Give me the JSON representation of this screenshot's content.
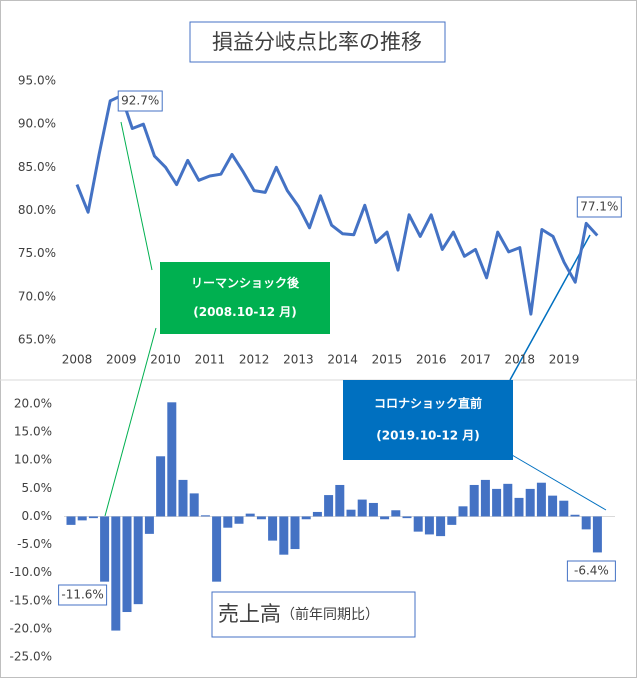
{
  "chart_data": [
    {
      "type": "line",
      "title": "損益分岐点比率の推移",
      "color": "#4472c4",
      "categories": [
        "2008",
        null,
        null,
        null,
        "2009",
        null,
        null,
        null,
        "2010",
        null,
        null,
        null,
        "2011",
        null,
        null,
        null,
        "2012",
        null,
        null,
        null,
        "2013",
        null,
        null,
        null,
        "2014",
        null,
        null,
        null,
        "2015",
        null,
        null,
        null,
        "2016",
        null,
        null,
        null,
        "2017",
        null,
        null,
        null,
        "2018",
        null,
        null,
        null,
        "2019",
        null,
        null,
        null
      ],
      "values": [
        83.0,
        79.8,
        86.5,
        92.7,
        93.3,
        89.5,
        90.0,
        86.3,
        85.0,
        83.0,
        85.8,
        83.5,
        84.0,
        84.2,
        86.5,
        84.5,
        82.3,
        82.1,
        85.0,
        82.3,
        80.5,
        78.0,
        81.7,
        78.3,
        77.3,
        77.2,
        80.6,
        76.3,
        77.5,
        73.1,
        79.5,
        77.0,
        79.5,
        75.5,
        77.5,
        74.7,
        75.5,
        72.2,
        77.5,
        75.2,
        75.7,
        68.0,
        77.8,
        77.0,
        74.0,
        71.7,
        78.5,
        77.1
      ],
      "value_labels": [
        null,
        null,
        null,
        "92.7%",
        null,
        null,
        null,
        null,
        null,
        null,
        null,
        null,
        null,
        null,
        null,
        null,
        null,
        null,
        null,
        null,
        null,
        null,
        null,
        null,
        null,
        null,
        null,
        null,
        null,
        null,
        null,
        null,
        null,
        null,
        null,
        null,
        null,
        null,
        null,
        null,
        null,
        null,
        null,
        null,
        null,
        null,
        null,
        "77.1%"
      ],
      "ylim": [
        65,
        95
      ],
      "yticks": [
        {
          "value": 65,
          "label": "65.0%"
        },
        {
          "value": 70,
          "label": "70.0%"
        },
        {
          "value": 75,
          "label": "75.0%"
        },
        {
          "value": 80,
          "label": "80.0%"
        },
        {
          "value": 85,
          "label": "85.0%"
        },
        {
          "value": 90,
          "label": "90.0%"
        },
        {
          "value": 95,
          "label": "95.0%"
        }
      ],
      "grid": false,
      "annotations": [
        {
          "text": "リーマンショック後",
          "sub": "(2008.10-12 月)",
          "color": "#00b050"
        },
        {
          "text": "コロナショック直前",
          "sub": "(2019.10-12 月)",
          "color": "#0070c0"
        }
      ]
    },
    {
      "type": "bar",
      "title": "売上高",
      "subtitle": "（前年同期比）",
      "color": "#4472c4",
      "values": [
        -1.5,
        -0.7,
        -0.3,
        -11.6,
        -20.3,
        -17.0,
        -15.6,
        -3.1,
        10.7,
        20.3,
        6.5,
        4.1,
        0.2,
        -11.6,
        -2.0,
        -1.3,
        0.5,
        -0.5,
        -4.3,
        -6.8,
        -5.8,
        -0.5,
        0.8,
        3.8,
        5.6,
        1.2,
        3.0,
        2.4,
        -0.5,
        1.1,
        -0.3,
        -2.7,
        -3.2,
        -3.5,
        -1.5,
        1.8,
        5.6,
        6.5,
        4.9,
        5.8,
        3.3,
        4.9,
        6.0,
        3.7,
        2.8,
        0.3,
        -2.3,
        -6.4
      ],
      "value_labels": [
        null,
        null,
        null,
        "-11.6%",
        null,
        null,
        null,
        null,
        null,
        null,
        null,
        null,
        null,
        null,
        null,
        null,
        null,
        null,
        null,
        null,
        null,
        null,
        null,
        null,
        null,
        null,
        null,
        null,
        null,
        null,
        null,
        null,
        null,
        null,
        null,
        null,
        null,
        null,
        null,
        null,
        null,
        null,
        null,
        null,
        null,
        null,
        null,
        "-6.4%"
      ],
      "ylim": [
        -25,
        20
      ],
      "yticks": [
        {
          "value": -25,
          "label": "-25.0%"
        },
        {
          "value": -20,
          "label": "-20.0%"
        },
        {
          "value": -15,
          "label": "-15.0%"
        },
        {
          "value": -10,
          "label": "-10.0%"
        },
        {
          "value": -5,
          "label": "-5.0%"
        },
        {
          "value": 0,
          "label": "0.0%"
        },
        {
          "value": 5,
          "label": "5.0%"
        },
        {
          "value": 10,
          "label": "10.0%"
        },
        {
          "value": 15,
          "label": "15.0%"
        },
        {
          "value": 20,
          "label": "20.0%"
        }
      ],
      "grid": false
    }
  ]
}
